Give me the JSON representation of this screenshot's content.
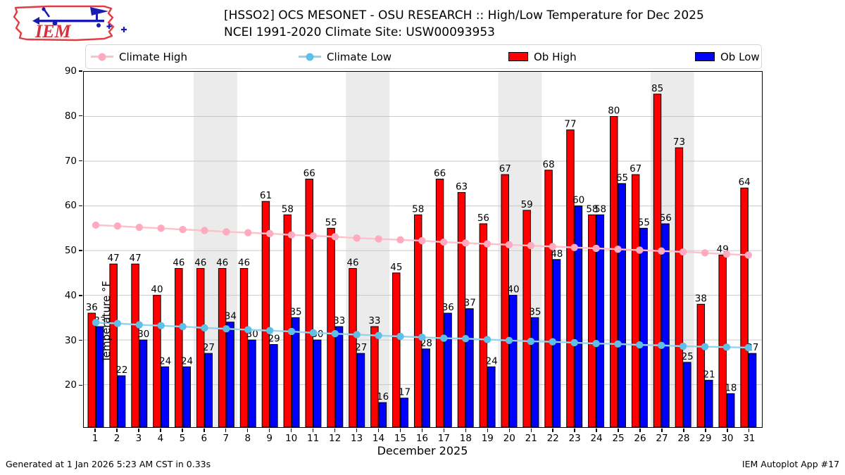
{
  "header": {
    "title_line1": "[HSSO2] OCS MESONET - OSU RESEARCH :: High/Low Temperature for Dec 2025",
    "title_line2": "NCEI 1991-2020 Climate Site: USW00093953",
    "logo_text": "IEM"
  },
  "legend": {
    "entries": [
      {
        "label": "Climate High",
        "type": "line",
        "color": "#ffc0cb",
        "marker_color": "#ffaabf"
      },
      {
        "label": "Climate Low",
        "type": "line",
        "color": "#92d3ee",
        "marker_color": "#5fbfe6"
      },
      {
        "label": "Ob High",
        "type": "rect",
        "color": "#ff0000"
      },
      {
        "label": "Ob Low",
        "type": "rect",
        "color": "#0000ff"
      }
    ]
  },
  "chart_data": {
    "type": "bar",
    "title": "[HSSO2] OCS MESONET - OSU RESEARCH :: High/Low Temperature for Dec 2025",
    "subtitle": "NCEI 1991-2020 Climate Site: USW00093953",
    "xlabel": "December 2025",
    "ylabel": "Temperature °F",
    "xlim": [
      0.45,
      31.62
    ],
    "ylim": [
      10.5,
      90
    ],
    "yticks": [
      20,
      30,
      40,
      50,
      60,
      70,
      80,
      90
    ],
    "grid": "horizontal",
    "grid_color": "#c9c9c9",
    "weekend_band_color": "#ebebeb",
    "weekend_bands": [
      [
        5.5,
        7.5
      ],
      [
        12.5,
        14.5
      ],
      [
        19.5,
        21.5
      ],
      [
        26.5,
        28.5
      ]
    ],
    "days": [
      1,
      2,
      3,
      4,
      5,
      6,
      7,
      8,
      9,
      10,
      11,
      12,
      13,
      14,
      15,
      16,
      17,
      18,
      19,
      20,
      21,
      22,
      23,
      24,
      25,
      26,
      27,
      28,
      29,
      30,
      31
    ],
    "series": [
      {
        "name": "Ob High",
        "type": "bar",
        "color": "#ff0000",
        "values": [
          36,
          47,
          47,
          40,
          46,
          46,
          46,
          46,
          61,
          58,
          66,
          55,
          46,
          33,
          45,
          58,
          66,
          63,
          56,
          67,
          59,
          68,
          77,
          58,
          80,
          67,
          85,
          73,
          38,
          49,
          64
        ]
      },
      {
        "name": "Ob Low",
        "type": "bar",
        "color": "#0000ff",
        "values": [
          33,
          22,
          30,
          24,
          24,
          27,
          34,
          30,
          29,
          35,
          30,
          33,
          27,
          16,
          17,
          28,
          36,
          37,
          24,
          40,
          35,
          48,
          60,
          58,
          65,
          55,
          56,
          25,
          21,
          18,
          27
        ]
      },
      {
        "name": "Climate High",
        "type": "line",
        "color": "#ffc0cb",
        "marker_color": "#ffaabf",
        "values": [
          55.7,
          55.5,
          55.2,
          55.0,
          54.7,
          54.5,
          54.2,
          54.0,
          53.8,
          53.5,
          53.3,
          53.1,
          52.8,
          52.6,
          52.4,
          52.2,
          51.9,
          51.7,
          51.5,
          51.3,
          51.1,
          50.9,
          50.7,
          50.5,
          50.3,
          50.1,
          49.9,
          49.7,
          49.5,
          49.2,
          49.0
        ]
      },
      {
        "name": "Climate Low",
        "type": "line",
        "color": "#92d3ee",
        "marker_color": "#5fbfe6",
        "values": [
          33.9,
          33.7,
          33.4,
          33.2,
          33.0,
          32.7,
          32.5,
          32.3,
          32.1,
          31.9,
          31.6,
          31.4,
          31.2,
          31.0,
          30.8,
          30.6,
          30.4,
          30.3,
          30.1,
          29.9,
          29.7,
          29.6,
          29.4,
          29.2,
          29.1,
          28.9,
          28.8,
          28.6,
          28.5,
          28.4,
          28.3
        ]
      }
    ]
  },
  "footer": {
    "left": "Generated at 1 Jan 2026 5:23 AM CST in 0.33s",
    "right": "IEM Autoplot App #17"
  }
}
